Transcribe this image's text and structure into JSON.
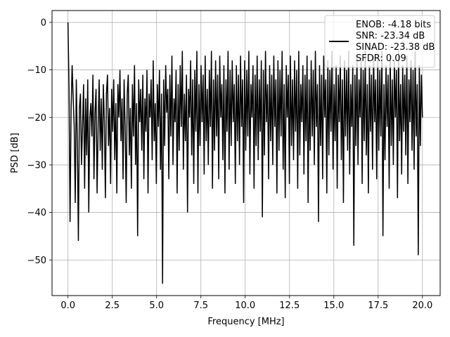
{
  "chart_data": {
    "type": "line",
    "xlabel": "Frequency [MHz]",
    "ylabel": "PSD [dB]",
    "xlim": [
      -0.9,
      21.0
    ],
    "ylim": [
      -57.5,
      2.5
    ],
    "xticks": [
      0.0,
      2.5,
      5.0,
      7.5,
      10.0,
      12.5,
      15.0,
      17.5,
      20.0
    ],
    "xtick_labels": [
      "0.0",
      "2.5",
      "5.0",
      "7.5",
      "10.0",
      "12.5",
      "15.0",
      "17.5",
      "20.0"
    ],
    "yticks": [
      0,
      -10,
      -20,
      -30,
      -40,
      -50
    ],
    "ytick_labels": [
      "0",
      "−10",
      "−20",
      "−30",
      "−40",
      "−50"
    ],
    "grid": true,
    "legend_position": "top-right",
    "series": [
      {
        "name": "ENOB: -4.18 bits\nSNR: -23.34 dB\nSINAD: -23.38 dB\nSFDR: 0.09",
        "color": "#000000",
        "x_start": 0.0,
        "x_end": 20.0,
        "values": [
          0.0,
          -14.0,
          -42.0,
          -18.0,
          -9.0,
          -16.0,
          -22.0,
          -38.0,
          -12.0,
          -25.0,
          -46.0,
          -18.0,
          -15.0,
          -30.0,
          -22.0,
          -13.0,
          -35.0,
          -16.0,
          -28.0,
          -12.0,
          -40.0,
          -20.0,
          -17.0,
          -24.0,
          -11.0,
          -33.0,
          -19.0,
          -14.0,
          -36.0,
          -22.0,
          -12.0,
          -27.0,
          -16.0,
          -31.0,
          -13.0,
          -21.0,
          -37.0,
          -15.0,
          -11.0,
          -26.0,
          -18.0,
          -34.0,
          -14.0,
          -23.0,
          -12.0,
          -29.0,
          -17.0,
          -36.0,
          -13.0,
          -20.0,
          -10.0,
          -25.0,
          -16.0,
          -33.0,
          -12.0,
          -22.0,
          -38.0,
          -15.0,
          -11.0,
          -28.0,
          -18.0,
          -35.0,
          -13.0,
          -24.0,
          -9.0,
          -30.0,
          -17.0,
          -45.0,
          -12.0,
          -21.0,
          -14.0,
          -27.0,
          -11.0,
          -33.0,
          -16.0,
          -23.0,
          -10.0,
          -36.0,
          -15.0,
          -20.0,
          -12.0,
          -29.0,
          -8.0,
          -25.0,
          -17.0,
          -34.0,
          -13.0,
          -22.0,
          -10.0,
          -31.0,
          -15.0,
          -55.0,
          -12.0,
          -26.0,
          -9.0,
          -19.0,
          -14.0,
          -33.0,
          -11.0,
          -24.0,
          -7.0,
          -30.0,
          -16.0,
          -21.0,
          -10.0,
          -36.0,
          -13.0,
          -27.0,
          -9.0,
          -22.0,
          -6.0,
          -31.0,
          -15.0,
          -25.0,
          -11.0,
          -40.0,
          -14.0,
          -20.0,
          -8.0,
          -28.0,
          -12.0,
          -34.0,
          -10.0,
          -23.0,
          -6.0,
          -36.0,
          -13.0,
          -26.0,
          -9.0,
          -21.0,
          -11.0,
          -32.0,
          -7.0,
          -25.0,
          -14.0,
          -30.0,
          -10.0,
          -22.0,
          -6.0,
          -35.0,
          -12.0,
          -27.0,
          -8.0,
          -24.0,
          -11.0,
          -33.0,
          -7.0,
          -20.0,
          -13.0,
          -29.0,
          -9.0,
          -36.0,
          -12.0,
          -23.0,
          -6.0,
          -31.0,
          -10.0,
          -26.0,
          -8.0,
          -21.0,
          -13.0,
          -34.0,
          -9.0,
          -25.0,
          -11.0,
          -30.0,
          -7.0,
          -22.0,
          -12.0,
          -38.0,
          -8.0,
          -27.0,
          -10.0,
          -24.0,
          -6.0,
          -32.0,
          -13.0,
          -20.0,
          -9.0,
          -35.0,
          -11.0,
          -26.0,
          -7.0,
          -29.0,
          -12.0,
          -23.0,
          -8.0,
          -41.0,
          -10.0,
          -28.0,
          -6.0,
          -21.0,
          -13.0,
          -33.0,
          -9.0,
          -25.0,
          -11.0,
          -30.0,
          -7.0,
          -22.0,
          -12.0,
          -36.0,
          -8.0,
          -27.0,
          -10.0,
          -24.0,
          -6.0,
          -31.0,
          -13.0,
          -37.0,
          -9.0,
          -20.0,
          -11.0,
          -34.0,
          -7.0,
          -26.0,
          -12.0,
          -29.0,
          -8.0,
          -23.0,
          -10.0,
          -35.0,
          -6.0,
          -28.0,
          -13.0,
          -21.0,
          -9.0,
          -32.0,
          -11.0,
          -25.0,
          -7.0,
          -38.0,
          -12.0,
          -27.0,
          -8.0,
          -24.0,
          -10.0,
          -30.0,
          -6.0,
          -22.0,
          -13.0,
          -42.0,
          -9.0,
          -26.0,
          -11.0,
          -33.0,
          -7.0,
          -20.0,
          -12.0,
          -36.0,
          -8.0,
          -28.0,
          -10.0,
          -23.0,
          -6.0,
          -31.0,
          -13.0,
          -25.0,
          -9.0,
          -35.0,
          -11.0,
          -21.0,
          -7.0,
          -29.0,
          -12.0,
          -38.0,
          -8.0,
          -24.0,
          -10.0,
          -27.0,
          -6.0,
          -32.0,
          -13.0,
          -22.0,
          -9.0,
          -47.0,
          -11.0,
          -26.0,
          -7.0,
          -30.0,
          -12.0,
          -20.0,
          -8.0,
          -34.0,
          -10.0,
          -25.0,
          -6.0,
          -28.0,
          -13.0,
          -36.0,
          -9.0,
          -23.0,
          -11.0,
          -31.0,
          -7.0,
          -21.0,
          -12.0,
          -33.0,
          -8.0,
          -27.0,
          -10.0,
          -24.0,
          -6.0,
          -45.0,
          -13.0,
          -29.0,
          -9.0,
          -22.0,
          -11.0,
          -35.0,
          -7.0,
          -26.0,
          -12.0,
          -30.0,
          -8.0,
          -20.0,
          -10.0,
          -37.0,
          -6.0,
          -25.0,
          -13.0,
          -32.0,
          -9.0,
          -23.0,
          -11.0,
          -28.0,
          -7.0,
          -34.0,
          -12.0,
          -21.0,
          -8.0,
          -27.0,
          -10.0,
          -31.0,
          -6.0,
          -24.0,
          -13.0,
          -49.0,
          -9.0,
          -26.0,
          -11.0,
          -20.0
        ]
      }
    ]
  }
}
